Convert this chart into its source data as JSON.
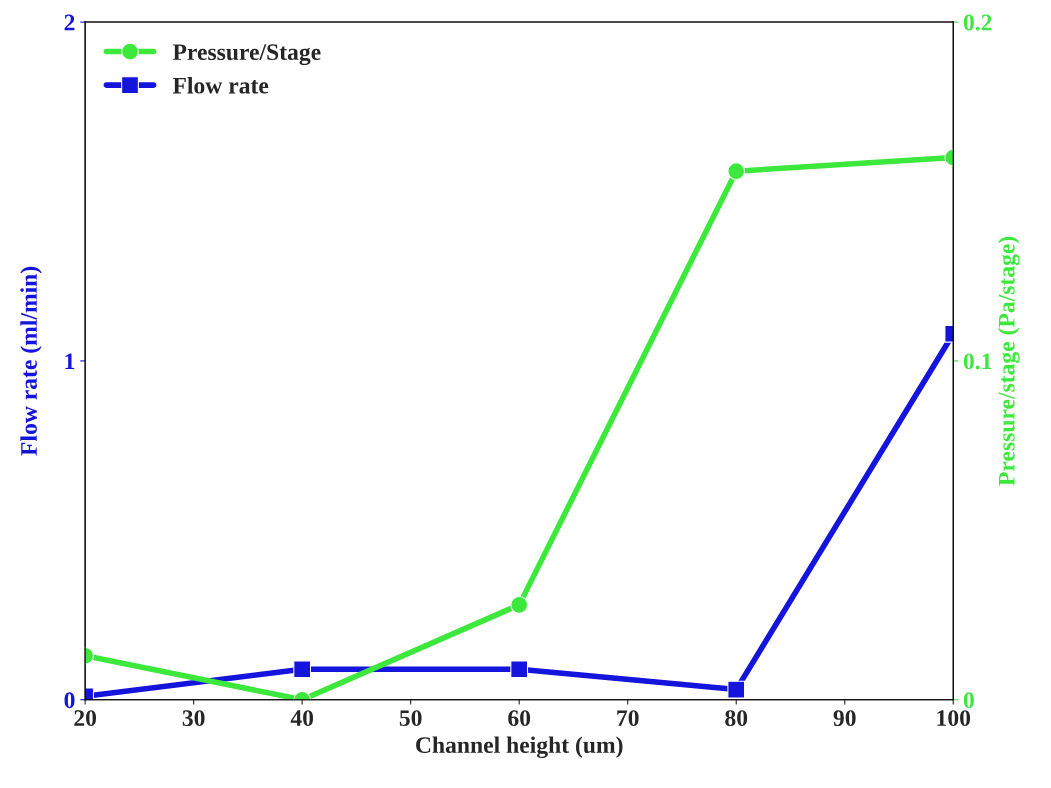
{
  "chart_data": {
    "type": "line",
    "xlabel": "Channel height (um)",
    "ylabel": "Flow rate (ml/min)",
    "y2label": "Pressure/stage (Pa/stage)",
    "x": [
      20,
      40,
      60,
      80,
      100
    ],
    "series": [
      {
        "name": "Pressure/Stage",
        "color": "#3ce83c",
        "axis": "y2",
        "marker": "circle",
        "values": [
          0.013,
          0.0,
          0.028,
          0.156,
          0.16
        ]
      },
      {
        "name": "Flow rate",
        "color": "#1414dc",
        "marker": "square",
        "values": [
          0.01,
          0.09,
          0.09,
          0.03,
          1.08
        ]
      }
    ],
    "xlim": [
      20,
      100
    ],
    "xticks": [
      20,
      30,
      40,
      50,
      60,
      70,
      80,
      90,
      100
    ],
    "ylim": [
      0,
      2
    ],
    "yticks": [
      0,
      1,
      2
    ],
    "y2lim": [
      0,
      0.2
    ],
    "y2ticks": [
      0,
      0.1,
      0.2
    ],
    "grid": false,
    "legend": "top left",
    "line_style": "solid"
  }
}
